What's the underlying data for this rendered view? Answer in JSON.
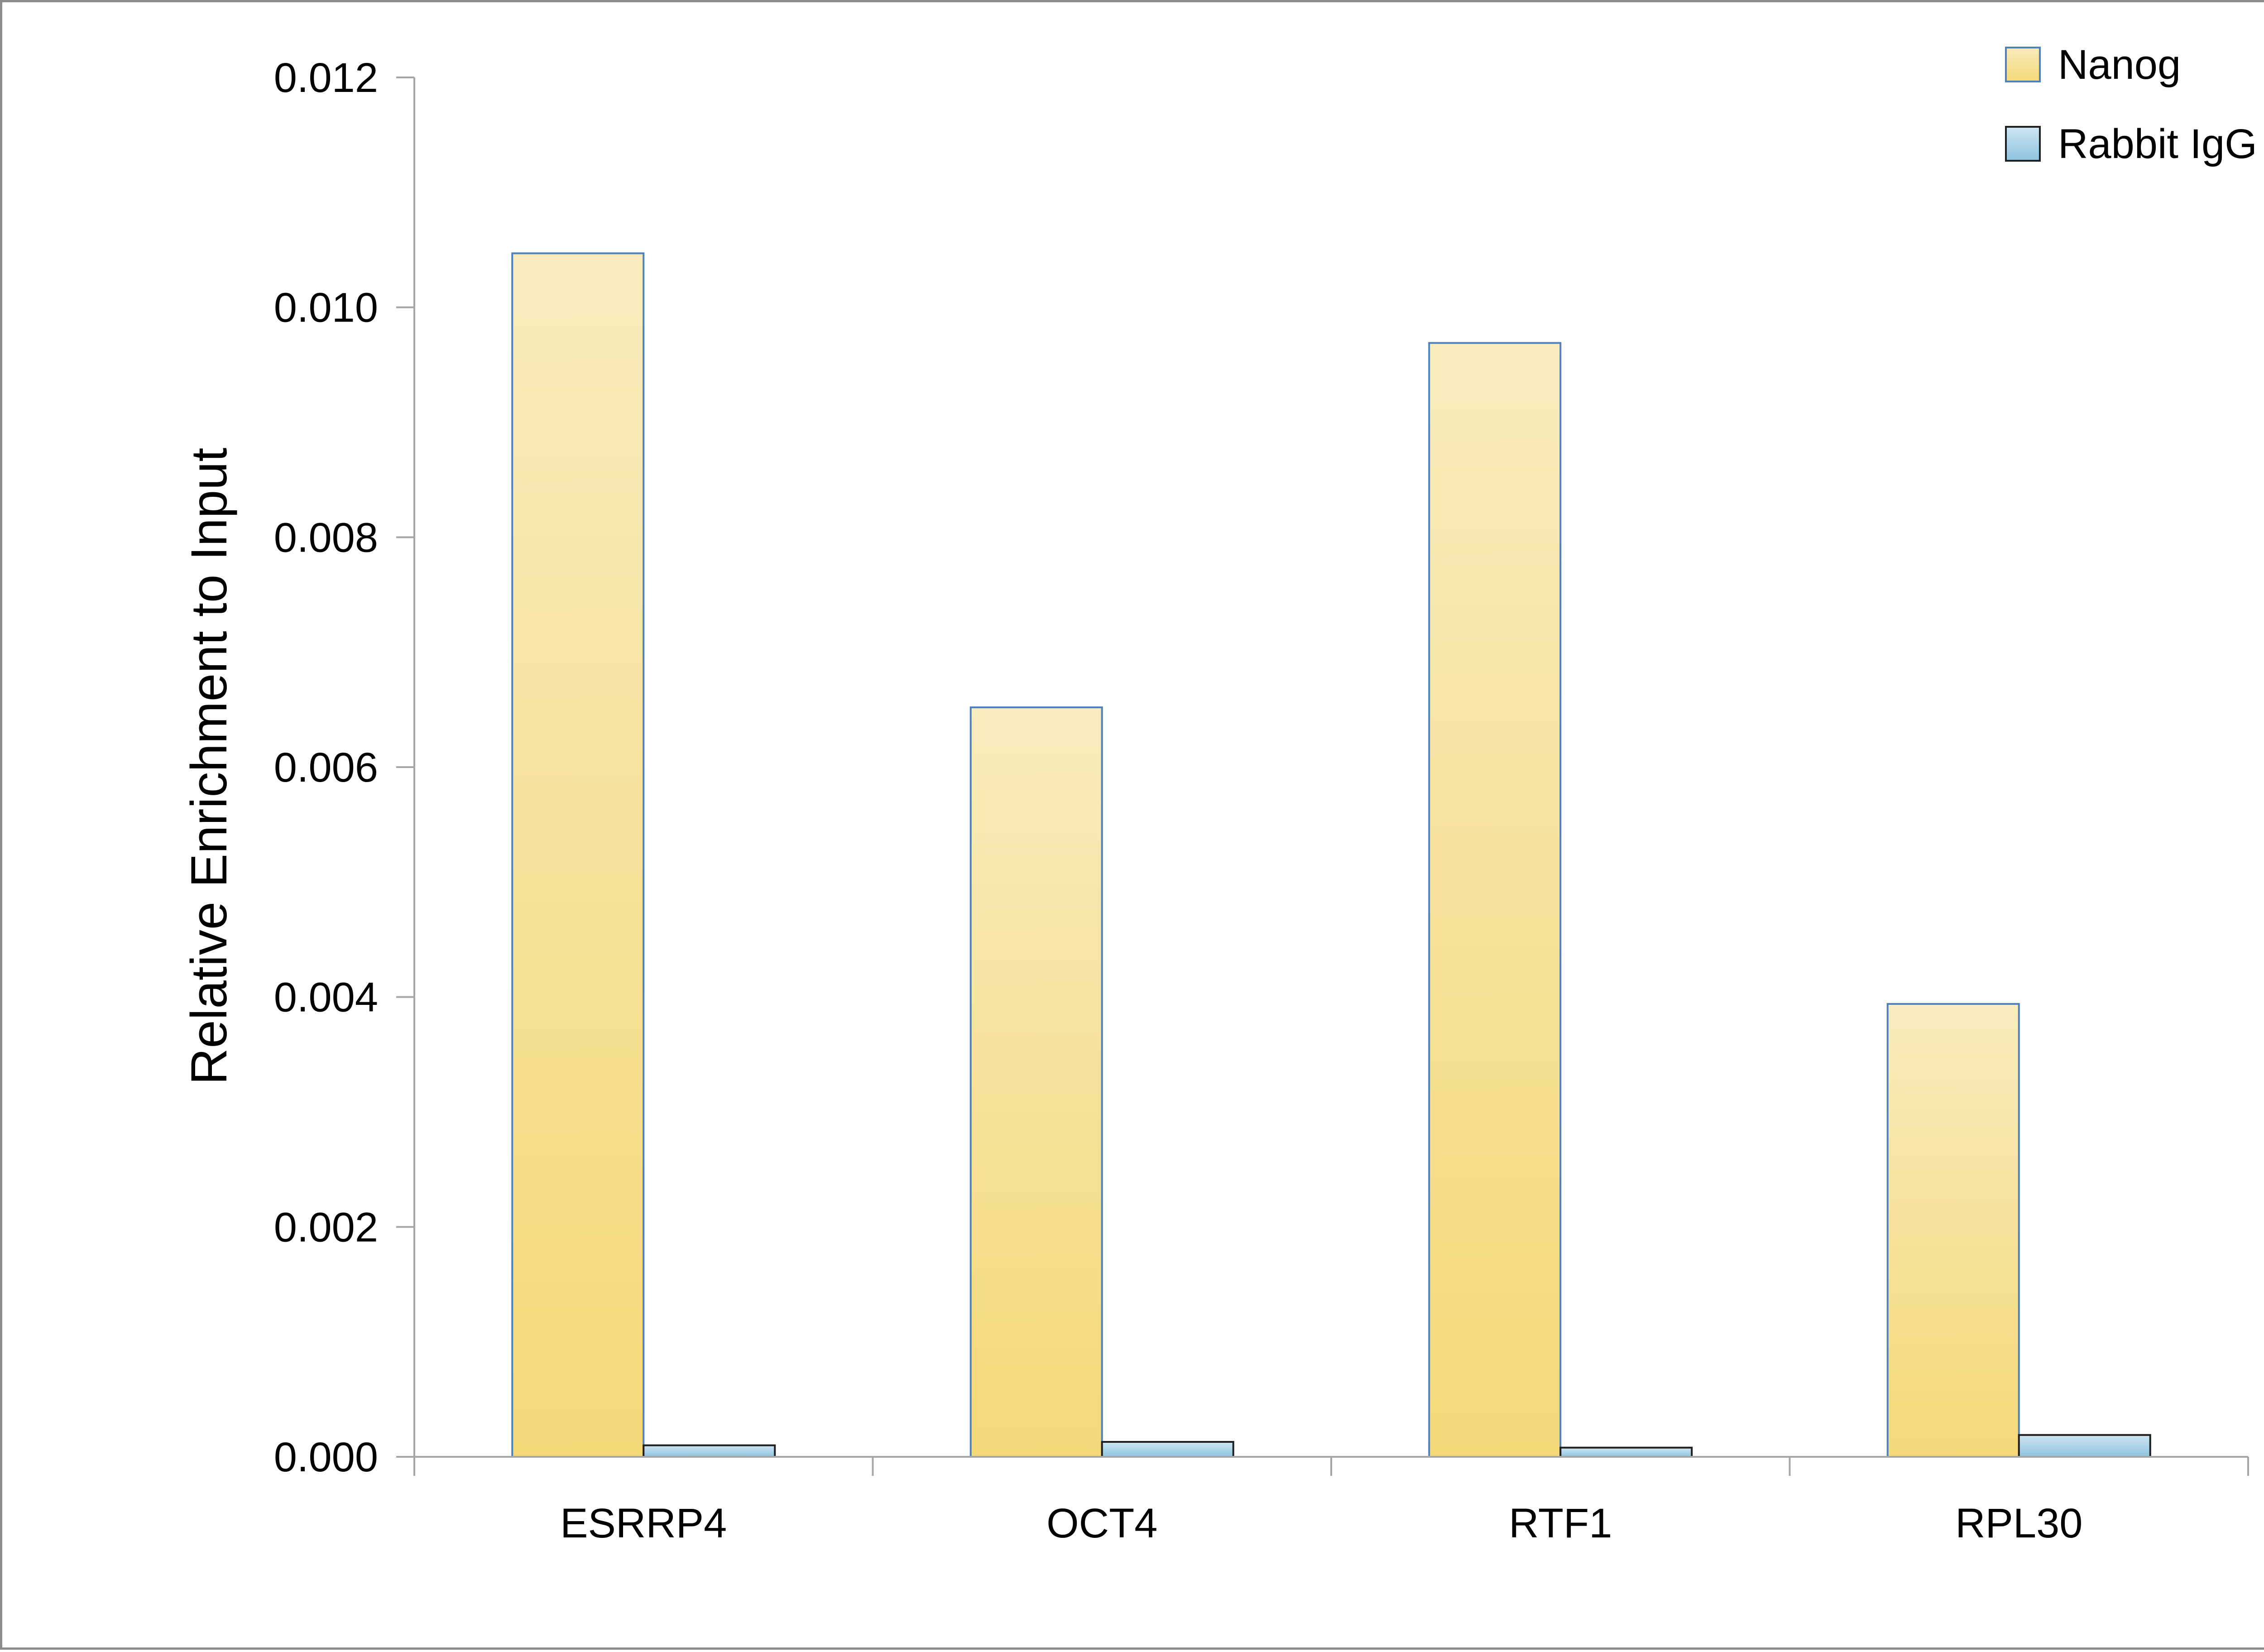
{
  "chart_data": {
    "type": "bar",
    "categories": [
      "ESRRP4",
      "OCT4",
      "RTF1",
      "RPL30"
    ],
    "series": [
      {
        "name": "Nanog",
        "values": [
          0.01047,
          0.00652,
          0.00969,
          0.00394
        ],
        "color_top": "#f8ebbd",
        "color_bottom": "#f5d878"
      },
      {
        "name": "Rabbit IgG",
        "values": [
          0.0001,
          0.00013,
          8e-05,
          0.00019
        ],
        "color_top": "#cfe6f2",
        "color_bottom": "#8ec3df"
      }
    ],
    "ylabel": "Relative Enrichment to Input",
    "xlabel": "",
    "ylim": [
      0,
      0.012
    ],
    "yticks": [
      "0.000",
      "0.002",
      "0.004",
      "0.006",
      "0.008",
      "0.010",
      "0.012"
    ],
    "grid": false,
    "legend_position": "top-right",
    "bar_edge_color": "#4f81bd",
    "axis_color": "#a6a6a6"
  }
}
